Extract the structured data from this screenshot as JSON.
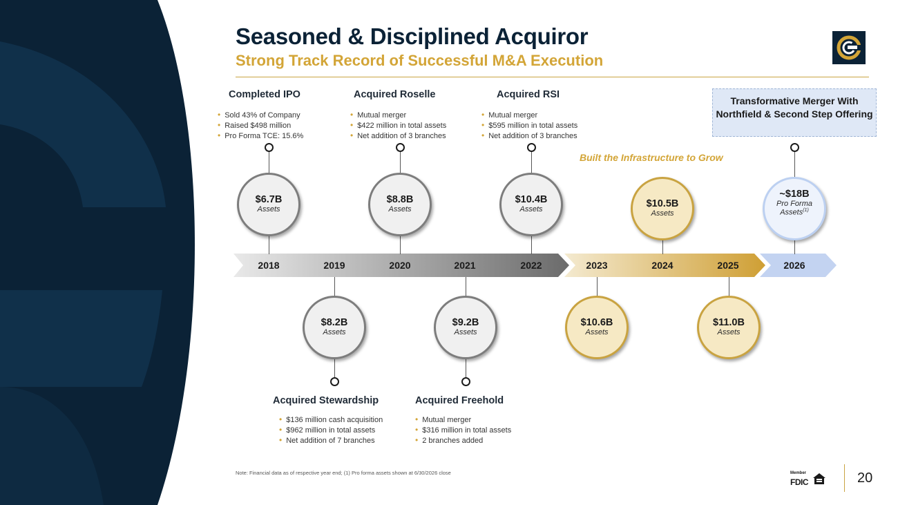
{
  "header": {
    "title": "Seasoned & Disciplined Acquiror",
    "subtitle": "Strong Track Record of Successful M&A Execution"
  },
  "colors": {
    "navy": "#0b2236",
    "gold": "#d3a537",
    "grey_ring": "#7d7d7d",
    "blue_ring": "#bcd0f1"
  },
  "timeline": {
    "years": [
      "2018",
      "2019",
      "2020",
      "2021",
      "2022",
      "2023",
      "2024",
      "2025",
      "2026"
    ]
  },
  "events_top": [
    {
      "title": "Completed IPO",
      "bullets": [
        "Sold 43% of Company",
        "Raised $498 million",
        "Pro Forma TCE: 15.6%"
      ]
    },
    {
      "title": "Acquired Roselle",
      "bullets": [
        "Mutual merger",
        "$422 million in total assets",
        "Net addition of 3 branches"
      ]
    },
    {
      "title": "Acquired RSI",
      "bullets": [
        "Mutual merger",
        "$595 million in total assets",
        "Net addition of 3 branches"
      ]
    }
  ],
  "events_bottom": [
    {
      "title": "Acquired Stewardship",
      "bullets": [
        "$136 million cash acquisition",
        "$962 million in total assets",
        "Net addition of 7 branches"
      ]
    },
    {
      "title": "Acquired Freehold",
      "bullets": [
        "Mutual merger",
        "$316 million in total assets",
        "2 branches added"
      ]
    }
  ],
  "merger_box": "Transformative Merger With Northfield & Second Step Offering",
  "infra_label": "Built the Infrastructure to Grow",
  "circles": [
    {
      "value": "$6.7B",
      "label": "Assets"
    },
    {
      "value": "$8.2B",
      "label": "Assets"
    },
    {
      "value": "$8.8B",
      "label": "Assets"
    },
    {
      "value": "$9.2B",
      "label": "Assets"
    },
    {
      "value": "$10.4B",
      "label": "Assets"
    },
    {
      "value": "$10.6B",
      "label": "Assets"
    },
    {
      "value": "$10.5B",
      "label": "Assets"
    },
    {
      "value": "$11.0B",
      "label": "Assets"
    },
    {
      "value": "~$18B",
      "label": "Pro Forma",
      "label2": "Assets",
      "sup": "(1)"
    }
  ],
  "footer": {
    "note": "Note: Financial data as of respective year end; (1) Pro forma assets shown at 6/30/2026 close",
    "page_number": "20",
    "fdic_member": "Member",
    "fdic_name": "FDIC"
  }
}
